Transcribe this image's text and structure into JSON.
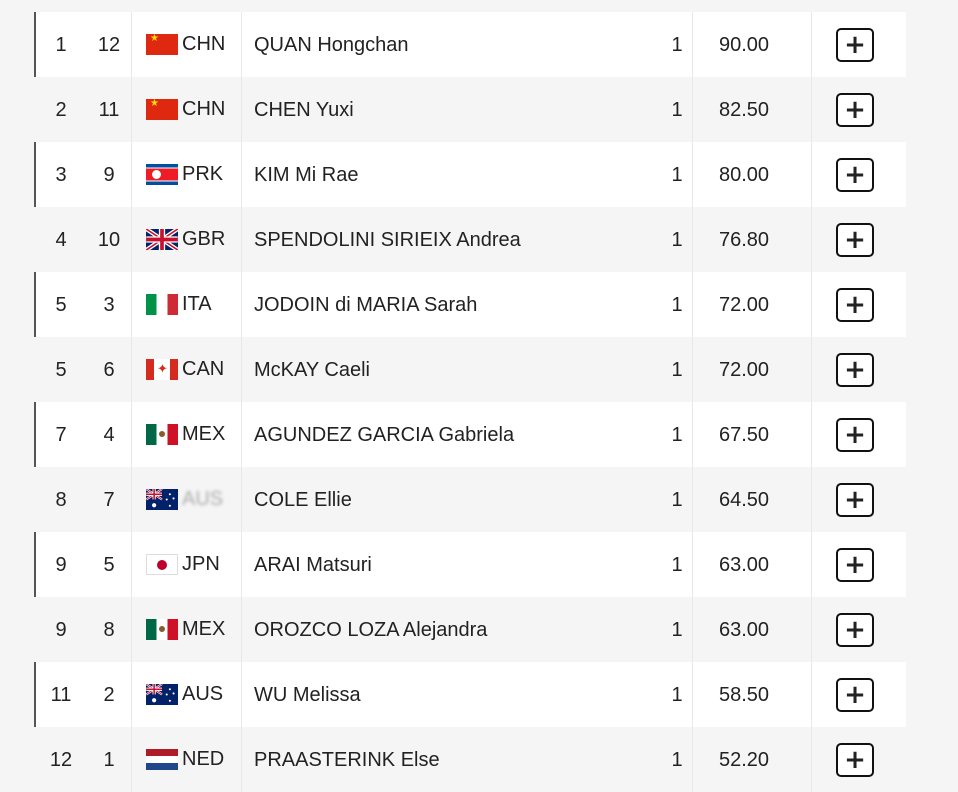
{
  "results": [
    {
      "rank": "1",
      "bib": "12",
      "flag": "chn",
      "noc": "CHN",
      "name": "QUAN Hongchan",
      "round": "1",
      "score": "90.00"
    },
    {
      "rank": "2",
      "bib": "11",
      "flag": "chn",
      "noc": "CHN",
      "name": "CHEN Yuxi",
      "round": "1",
      "score": "82.50"
    },
    {
      "rank": "3",
      "bib": "9",
      "flag": "prk",
      "noc": "PRK",
      "name": "KIM Mi Rae",
      "round": "1",
      "score": "80.00"
    },
    {
      "rank": "4",
      "bib": "10",
      "flag": "gbr",
      "noc": "GBR",
      "name": "SPENDOLINI SIRIEIX Andrea",
      "round": "1",
      "score": "76.80"
    },
    {
      "rank": "5",
      "bib": "3",
      "flag": "ita",
      "noc": "ITA",
      "name": "JODOIN di MARIA Sarah",
      "round": "1",
      "score": "72.00"
    },
    {
      "rank": "5",
      "bib": "6",
      "flag": "can",
      "noc": "CAN",
      "name": "McKAY Caeli",
      "round": "1",
      "score": "72.00"
    },
    {
      "rank": "7",
      "bib": "4",
      "flag": "mex",
      "noc": "MEX",
      "name": "AGUNDEZ GARCIA Gabriela",
      "round": "1",
      "score": "67.50"
    },
    {
      "rank": "8",
      "bib": "7",
      "flag": "aus",
      "noc": "AUS",
      "name": "COLE Ellie",
      "round": "1",
      "score": "64.50"
    },
    {
      "rank": "9",
      "bib": "5",
      "flag": "jpn",
      "noc": "JPN",
      "name": "ARAI Matsuri",
      "round": "1",
      "score": "63.00"
    },
    {
      "rank": "9",
      "bib": "8",
      "flag": "mex",
      "noc": "MEX",
      "name": "OROZCO LOZA Alejandra",
      "round": "1",
      "score": "63.00"
    },
    {
      "rank": "11",
      "bib": "2",
      "flag": "aus",
      "noc": "AUS",
      "name": "WU Melissa",
      "round": "1",
      "score": "58.50"
    },
    {
      "rank": "12",
      "bib": "1",
      "flag": "ned",
      "noc": "NED",
      "name": "PRAASTERINK Else",
      "round": "1",
      "score": "52.20"
    }
  ],
  "expand_label": "+",
  "colors": {
    "row_odd": "#ffffff",
    "row_even": "#f5f5f5",
    "border": "#555555"
  }
}
